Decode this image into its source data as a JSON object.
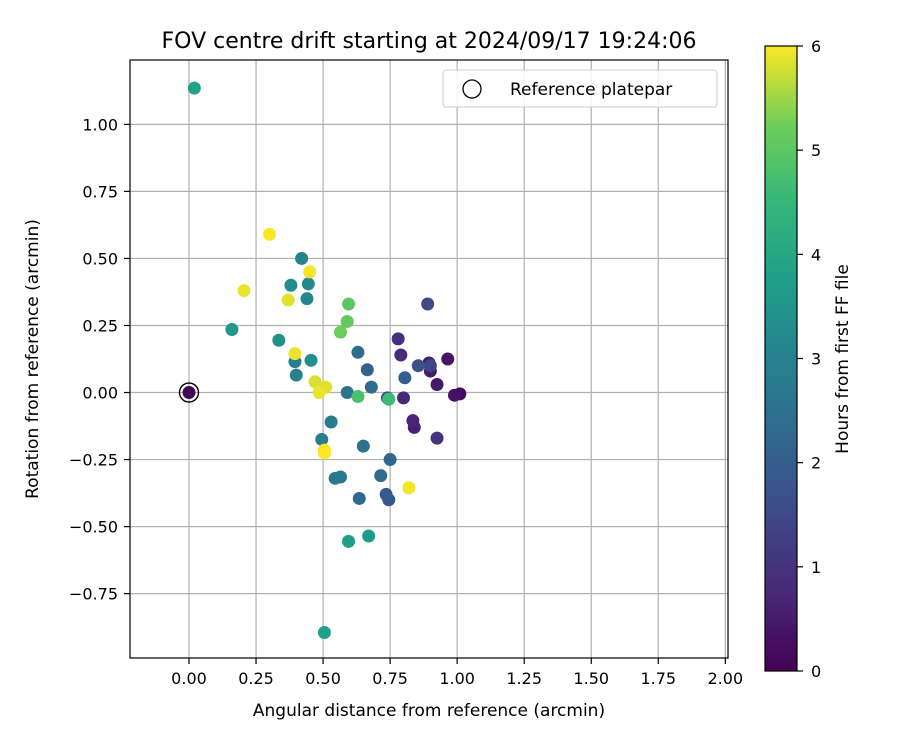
{
  "chart_data": {
    "type": "scatter",
    "title": "FOV centre drift starting at 2024/09/17 19:24:06",
    "xlabel": "Angular distance from reference (arcmin)",
    "ylabel": "Rotation from reference (arcmin)",
    "xlim": [
      -0.22,
      2.01
    ],
    "ylim": [
      -0.99,
      1.24
    ],
    "x_ticks": [
      0.0,
      0.25,
      0.5,
      0.75,
      1.0,
      1.25,
      1.5,
      1.75,
      2.0
    ],
    "x_tick_labels": [
      "0.00",
      "0.25",
      "0.50",
      "0.75",
      "1.00",
      "1.25",
      "1.50",
      "1.75",
      "2.00"
    ],
    "y_ticks": [
      -0.75,
      -0.5,
      -0.25,
      0.0,
      0.25,
      0.5,
      0.75,
      1.0
    ],
    "y_tick_labels": [
      "−0.75",
      "−0.50",
      "−0.25",
      "0.00",
      "0.25",
      "0.50",
      "0.75",
      "1.00"
    ],
    "grid": true,
    "legend": {
      "placement": "top-right",
      "entries": [
        "Reference platepar"
      ]
    },
    "colorbar": {
      "label": "Hours from first FF file",
      "range": [
        0,
        6
      ],
      "ticks": [
        0,
        1,
        2,
        3,
        4,
        5,
        6
      ],
      "tick_labels": [
        "0",
        "1",
        "2",
        "3",
        "4",
        "5",
        "6"
      ],
      "colormap": "viridis"
    },
    "reference": {
      "x": 0.0,
      "y": 0.0,
      "hours": 0.0
    },
    "points": [
      {
        "x": 0.0,
        "y": 0.0,
        "hours": 0.05
      },
      {
        "x": 1.01,
        "y": -0.005,
        "hours": 0.2
      },
      {
        "x": 0.99,
        "y": -0.01,
        "hours": 0.3
      },
      {
        "x": 0.965,
        "y": 0.125,
        "hours": 0.35
      },
      {
        "x": 0.925,
        "y": 0.03,
        "hours": 0.45
      },
      {
        "x": 0.9,
        "y": 0.08,
        "hours": 0.5
      },
      {
        "x": 0.895,
        "y": 0.11,
        "hours": 0.55
      },
      {
        "x": 0.84,
        "y": -0.13,
        "hours": 0.6
      },
      {
        "x": 0.835,
        "y": -0.105,
        "hours": 0.7
      },
      {
        "x": 0.8,
        "y": -0.02,
        "hours": 0.8
      },
      {
        "x": 0.79,
        "y": 0.14,
        "hours": 0.85
      },
      {
        "x": 0.78,
        "y": 0.2,
        "hours": 0.9
      },
      {
        "x": 0.925,
        "y": -0.17,
        "hours": 1.0
      },
      {
        "x": 0.9,
        "y": 0.1,
        "hours": 1.4
      },
      {
        "x": 0.89,
        "y": 0.33,
        "hours": 1.5
      },
      {
        "x": 0.855,
        "y": 0.1,
        "hours": 1.7
      },
      {
        "x": 0.74,
        "y": -0.02,
        "hours": 1.75
      },
      {
        "x": 0.745,
        "y": -0.4,
        "hours": 1.8
      },
      {
        "x": 0.735,
        "y": -0.38,
        "hours": 1.9
      },
      {
        "x": 0.805,
        "y": 0.055,
        "hours": 2.0
      },
      {
        "x": 0.665,
        "y": 0.085,
        "hours": 2.1
      },
      {
        "x": 0.75,
        "y": -0.25,
        "hours": 2.2
      },
      {
        "x": 0.635,
        "y": -0.395,
        "hours": 2.25
      },
      {
        "x": 0.715,
        "y": -0.31,
        "hours": 2.3
      },
      {
        "x": 0.68,
        "y": 0.02,
        "hours": 2.35
      },
      {
        "x": 0.63,
        "y": 0.15,
        "hours": 2.4
      },
      {
        "x": 0.65,
        "y": -0.2,
        "hours": 2.5
      },
      {
        "x": 0.59,
        "y": 0.0,
        "hours": 2.6
      },
      {
        "x": 0.565,
        "y": -0.315,
        "hours": 2.7
      },
      {
        "x": 0.545,
        "y": -0.32,
        "hours": 2.75
      },
      {
        "x": 0.53,
        "y": -0.11,
        "hours": 2.8
      },
      {
        "x": 0.495,
        "y": -0.175,
        "hours": 2.85
      },
      {
        "x": 0.395,
        "y": 0.115,
        "hours": 2.9
      },
      {
        "x": 0.4,
        "y": 0.065,
        "hours": 2.95
      },
      {
        "x": 0.42,
        "y": 0.5,
        "hours": 3.0
      },
      {
        "x": 0.44,
        "y": 0.35,
        "hours": 3.1
      },
      {
        "x": 0.445,
        "y": 0.405,
        "hours": 3.2
      },
      {
        "x": 0.38,
        "y": 0.4,
        "hours": 3.3
      },
      {
        "x": 0.455,
        "y": 0.12,
        "hours": 3.35
      },
      {
        "x": 0.335,
        "y": 0.195,
        "hours": 3.4
      },
      {
        "x": 0.16,
        "y": 0.235,
        "hours": 3.6
      },
      {
        "x": 0.67,
        "y": -0.535,
        "hours": 3.7
      },
      {
        "x": 0.595,
        "y": -0.555,
        "hours": 3.75
      },
      {
        "x": 0.505,
        "y": -0.895,
        "hours": 3.8
      },
      {
        "x": 0.02,
        "y": 1.135,
        "hours": 3.9
      },
      {
        "x": 0.745,
        "y": -0.025,
        "hours": 4.6
      },
      {
        "x": 0.63,
        "y": -0.015,
        "hours": 4.8
      },
      {
        "x": 0.595,
        "y": 0.33,
        "hours": 5.0
      },
      {
        "x": 0.59,
        "y": 0.265,
        "hours": 5.1
      },
      {
        "x": 0.565,
        "y": 0.225,
        "hours": 5.2
      },
      {
        "x": 0.47,
        "y": 0.04,
        "hours": 5.8
      },
      {
        "x": 0.51,
        "y": 0.02,
        "hours": 5.85
      },
      {
        "x": 0.485,
        "y": 0.0,
        "hours": 5.9
      },
      {
        "x": 0.505,
        "y": -0.215,
        "hours": 5.95
      },
      {
        "x": 0.505,
        "y": -0.225,
        "hours": 6.0
      },
      {
        "x": 0.82,
        "y": -0.355,
        "hours": 5.95
      },
      {
        "x": 0.395,
        "y": 0.145,
        "hours": 5.9
      },
      {
        "x": 0.37,
        "y": 0.345,
        "hours": 5.85
      },
      {
        "x": 0.45,
        "y": 0.45,
        "hours": 5.95
      },
      {
        "x": 0.3,
        "y": 0.59,
        "hours": 6.0
      },
      {
        "x": 0.205,
        "y": 0.38,
        "hours": 5.9
      }
    ]
  }
}
